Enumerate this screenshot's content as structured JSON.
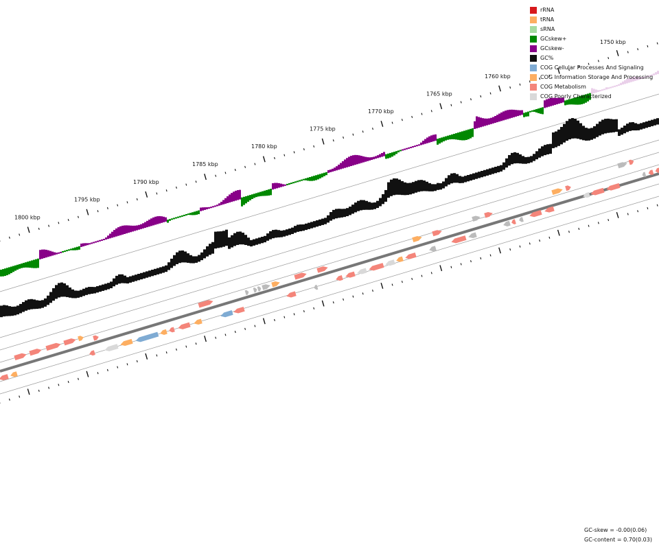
{
  "legend": [
    {
      "label": "rRNA",
      "color": "#d7191c"
    },
    {
      "label": "tRNA",
      "color": "#fdae61"
    },
    {
      "label": "sRNA",
      "color": "#a6dba0"
    },
    {
      "label": "GCskew+",
      "color": "#008800"
    },
    {
      "label": "GCskew-",
      "color": "#880088"
    },
    {
      "label": "GC%",
      "color": "#111111"
    },
    {
      "label": "COG Cellular Processes And Signaling",
      "color": "#7fabd3"
    },
    {
      "label": "COG Information Storage And Processing",
      "color": "#fdae61"
    },
    {
      "label": "COG Metabolism",
      "color": "#f4857a"
    },
    {
      "label": "COG Poorly Characterized",
      "color": "#d9d9d9"
    }
  ],
  "ticks": [
    "1800 kbp",
    "1795 kbp",
    "1790 kbp",
    "1785 kbp",
    "1780 kbp",
    "1775 kbp",
    "1770 kbp",
    "1765 kbp",
    "1760 kbp",
    "1750 kbp"
  ],
  "stats": {
    "gc_skew": "GC-skew = -0.00(0.06)",
    "gc_content": "GC-content = 0.70(0.03)"
  },
  "colors": {
    "backbone": "#777777",
    "cog_metabolism": "#f4857a",
    "cog_info": "#fdae61",
    "cog_cell": "#7fabd3",
    "cog_poor": "#d9d9d9",
    "hypothetical": "#bbbbbb"
  }
}
